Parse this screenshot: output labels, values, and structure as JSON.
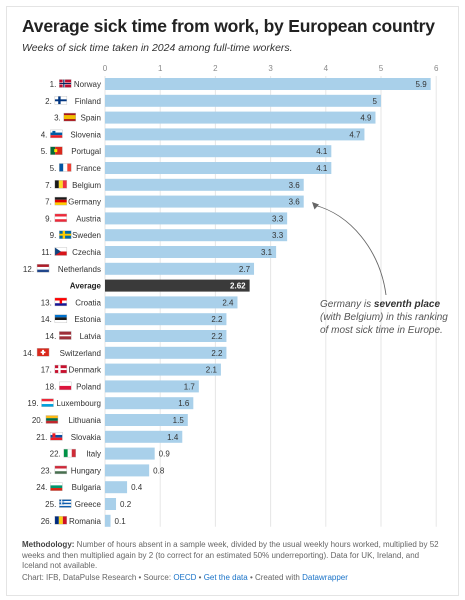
{
  "title": "Average sick time from work, by European country",
  "subtitle": "Weeks of sick time taken in 2024 among full-time workers.",
  "chart_data": {
    "type": "bar",
    "orientation": "horizontal",
    "xlim": [
      0,
      6
    ],
    "xticks": [
      "0",
      "1",
      "2",
      "3",
      "4",
      "5",
      "6"
    ],
    "bar_color": "#a9d0ea",
    "highlight_color": "#3a3a3a",
    "rows": [
      {
        "rank": "1.",
        "country": "Norway",
        "value": "5.9",
        "flag": "no"
      },
      {
        "rank": "2.",
        "country": "Finland",
        "value": "5",
        "flag": "fi"
      },
      {
        "rank": "3.",
        "country": "Spain",
        "value": "4.9",
        "flag": "es"
      },
      {
        "rank": "4.",
        "country": "Slovenia",
        "value": "4.7",
        "flag": "si"
      },
      {
        "rank": "5.",
        "country": "Portugal",
        "value": "4.1",
        "flag": "pt"
      },
      {
        "rank": "5.",
        "country": "France",
        "value": "4.1",
        "flag": "fr"
      },
      {
        "rank": "7.",
        "country": "Belgium",
        "value": "3.6",
        "flag": "be"
      },
      {
        "rank": "7.",
        "country": "Germany",
        "value": "3.6",
        "flag": "de"
      },
      {
        "rank": "9.",
        "country": "Austria",
        "value": "3.3",
        "flag": "at"
      },
      {
        "rank": "9.",
        "country": "Sweden",
        "value": "3.3",
        "flag": "se"
      },
      {
        "rank": "11.",
        "country": "Czechia",
        "value": "3.1",
        "flag": "cz"
      },
      {
        "rank": "12.",
        "country": "Netherlands",
        "value": "2.7",
        "flag": "nl"
      },
      {
        "rank": "",
        "country": "Average",
        "value": "2.62",
        "flag": "",
        "highlight": true
      },
      {
        "rank": "13.",
        "country": "Croatia",
        "value": "2.4",
        "flag": "hr"
      },
      {
        "rank": "14.",
        "country": "Estonia",
        "value": "2.2",
        "flag": "ee"
      },
      {
        "rank": "14.",
        "country": "Latvia",
        "value": "2.2",
        "flag": "lv"
      },
      {
        "rank": "14.",
        "country": "Switzerland",
        "value": "2.2",
        "flag": "ch"
      },
      {
        "rank": "17.",
        "country": "Denmark",
        "value": "2.1",
        "flag": "dk"
      },
      {
        "rank": "18.",
        "country": "Poland",
        "value": "1.7",
        "flag": "pl"
      },
      {
        "rank": "19.",
        "country": "Luxembourg",
        "value": "1.6",
        "flag": "lu"
      },
      {
        "rank": "20.",
        "country": "Lithuania",
        "value": "1.5",
        "flag": "lt"
      },
      {
        "rank": "21.",
        "country": "Slovakia",
        "value": "1.4",
        "flag": "sk"
      },
      {
        "rank": "22.",
        "country": "Italy",
        "value": "0.9",
        "flag": "it"
      },
      {
        "rank": "23.",
        "country": "Hungary",
        "value": "0.8",
        "flag": "hu"
      },
      {
        "rank": "24.",
        "country": "Bulgaria",
        "value": "0.4",
        "flag": "bg"
      },
      {
        "rank": "25.",
        "country": "Greece",
        "value": "0.2",
        "flag": "gr"
      },
      {
        "rank": "26.",
        "country": "Romania",
        "value": "0.1",
        "flag": "ro"
      }
    ],
    "annotation": {
      "before": "Germany is ",
      "bold": "seventh place",
      "after": " (with Belgium) in this ranking of most sick time in Europe."
    }
  },
  "notes": {
    "label": "Methodology:",
    "text": " Number of hours absent in a sample week, divided by the usual weekly hours worked, multiplied by 52 weeks and then multiplied again by 2 (to correct for an estimated 50% underreporting). Data for UK, Ireland, and Iceland not available."
  },
  "footer": {
    "prefix": "Chart: IFB, DataPulse Research • Source: ",
    "source_link": "OECD",
    "sep1": " • ",
    "data_link": "Get the data",
    "sep2": " • Created with ",
    "tool_link": "Datawrapper"
  }
}
